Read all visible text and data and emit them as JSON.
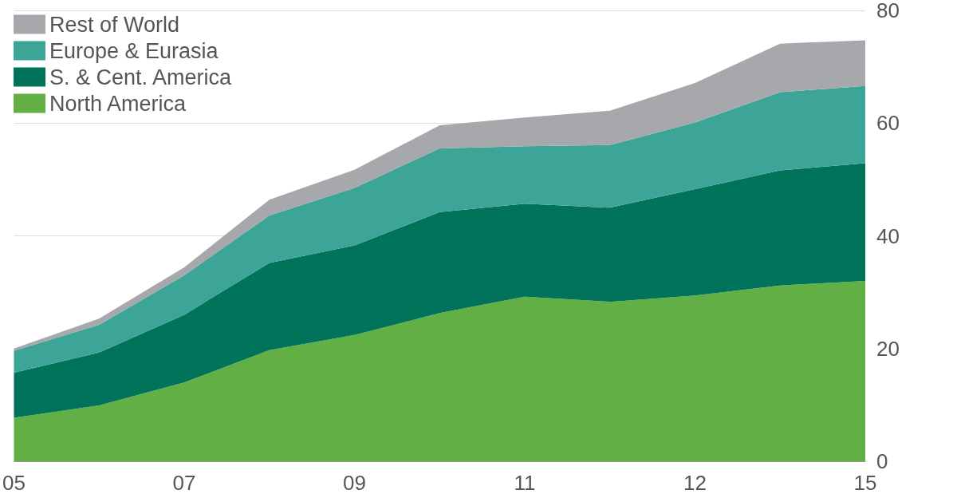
{
  "chart_data": {
    "type": "area",
    "stacked": true,
    "categories": [
      "05",
      null,
      "07",
      null,
      "09",
      null,
      "11",
      null,
      "12",
      null,
      "15"
    ],
    "series": [
      {
        "name": "North America",
        "color": "#62b045",
        "values": [
          7.7,
          9.9,
          14.0,
          19.7,
          22.4,
          26.3,
          29.2,
          28.3,
          29.4,
          31.2,
          32.0
        ]
      },
      {
        "name": "S. & Cent. America",
        "color": "#00735a",
        "values": [
          8.0,
          9.4,
          12.0,
          15.5,
          15.9,
          17.9,
          16.5,
          16.7,
          18.9,
          20.4,
          20.9
        ]
      },
      {
        "name": "Europe & Eurasia",
        "color": "#3da598",
        "values": [
          3.9,
          4.9,
          7.0,
          8.4,
          10.2,
          11.3,
          10.2,
          11.1,
          11.8,
          13.9,
          13.7
        ]
      },
      {
        "name": "Rest of World",
        "color": "#a6a8ab",
        "values": [
          0.4,
          1.1,
          1.4,
          2.8,
          3.2,
          4.1,
          5.1,
          6.1,
          7.0,
          8.6,
          8.1
        ]
      }
    ],
    "ylim": [
      0,
      80
    ],
    "yticks": [
      0,
      20,
      40,
      60,
      80
    ],
    "grid": "y",
    "legend": "top left"
  }
}
